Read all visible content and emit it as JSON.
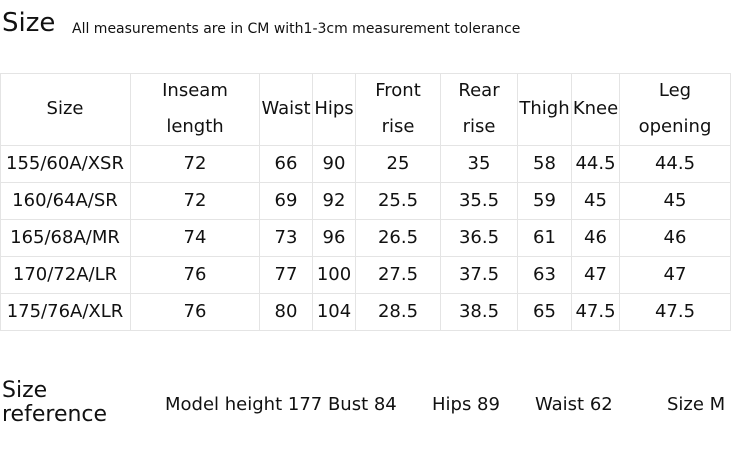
{
  "header": {
    "title": "Size",
    "subtitle": "All measurements are in CM with1-3cm measurement tolerance"
  },
  "table": {
    "columns": [
      [
        "Size"
      ],
      [
        "Inseam",
        "length"
      ],
      [
        "Waist"
      ],
      [
        "Hips"
      ],
      [
        "Front",
        "rise"
      ],
      [
        "Rear",
        "rise"
      ],
      [
        "Thigh"
      ],
      [
        "Knee"
      ],
      [
        "Leg",
        "opening"
      ]
    ],
    "rows": [
      [
        "155/60A/XSR",
        72,
        66,
        90,
        25,
        35,
        58,
        44.5,
        44.5
      ],
      [
        "160/64A/SR",
        72,
        69,
        92,
        25.5,
        35.5,
        59,
        45,
        45
      ],
      [
        "165/68A/MR",
        74,
        73,
        96,
        26.5,
        36.5,
        61,
        46,
        46
      ],
      [
        "170/72A/LR",
        76,
        77,
        100,
        27.5,
        37.5,
        63,
        47,
        47
      ],
      [
        "175/76A/XLR",
        76,
        80,
        104,
        28.5,
        38.5,
        65,
        47.5,
        47.5
      ]
    ]
  },
  "reference": {
    "title": [
      "Size",
      "reference"
    ],
    "items": [
      "Model height 177 Bust 84",
      "Hips 89",
      "Waist 62",
      "Size M"
    ]
  }
}
